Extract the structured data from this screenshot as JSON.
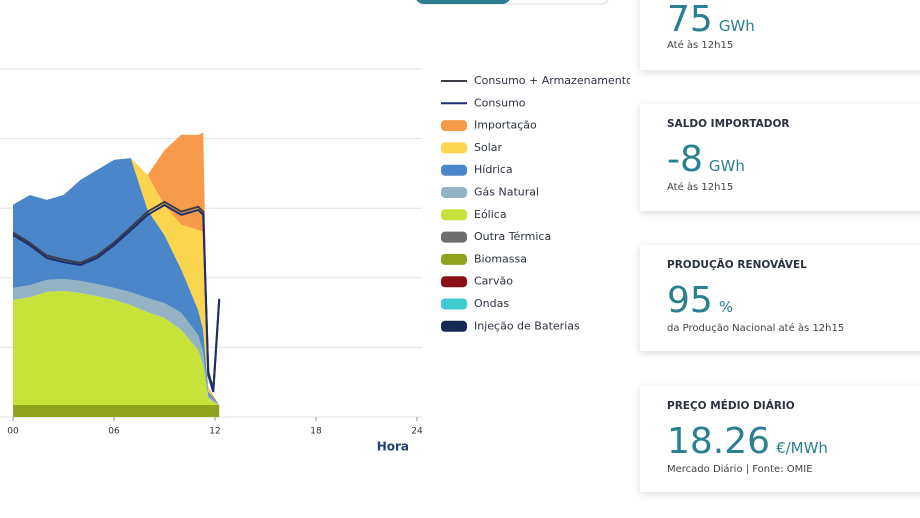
{
  "chart_data": {
    "type": "stacked-area",
    "x": [
      0,
      1,
      2,
      3,
      4,
      5,
      6,
      7,
      8,
      9,
      10,
      11,
      11.3,
      11.6,
      11.9,
      12.25
    ],
    "xlim": [
      0,
      24
    ],
    "xticks": [
      {
        "value": 0,
        "label": "00"
      },
      {
        "value": 6,
        "label": "06"
      },
      12,
      18,
      24
    ],
    "xlabel": "Hora",
    "ylim": [
      0,
      10000
    ],
    "yticks": [
      0,
      2000,
      4000,
      6000,
      8000,
      10000
    ],
    "grid": true,
    "series": [
      {
        "name": "Consumo + Armazenamento",
        "color": "#3a3f47",
        "type": "line",
        "values": [
          5300,
          5000,
          4640,
          4520,
          4430,
          4640,
          5010,
          5450,
          5900,
          6180,
          5900,
          6040,
          5900,
          1300,
          800,
          3400
        ]
      },
      {
        "name": "Consumo",
        "color": "#1b2f6e",
        "type": "line",
        "values": [
          5230,
          4940,
          4570,
          4450,
          4370,
          4570,
          4940,
          5370,
          5810,
          6090,
          5810,
          5950,
          5810,
          1210,
          720,
          3360
        ]
      },
      {
        "name": "Importação",
        "color": "#f79a4a",
        "type": "area",
        "values": [
          0,
          0,
          0,
          0,
          0,
          0,
          0,
          0,
          0,
          1580,
          2590,
          2730,
          2850,
          60,
          60,
          0
        ]
      },
      {
        "name": "Solar",
        "color": "#fcd54f",
        "type": "area",
        "values": [
          0,
          0,
          0,
          0,
          0,
          0,
          0,
          0,
          1010,
          860,
          1290,
          2300,
          2820,
          60,
          0,
          0
        ]
      },
      {
        "name": "Hídrica",
        "color": "#4b86c8",
        "type": "area",
        "values": [
          2390,
          2590,
          2300,
          2410,
          2900,
          3280,
          3680,
          3850,
          2530,
          1950,
          1240,
          720,
          630,
          90,
          60,
          0
        ]
      },
      {
        "name": "Gás Natural",
        "color": "#93b2c3",
        "type": "area",
        "values": [
          345,
          345,
          345,
          345,
          345,
          345,
          345,
          375,
          400,
          430,
          490,
          430,
          375,
          90,
          60,
          0
        ]
      },
      {
        "name": "Eólica",
        "color": "#c8e23c",
        "type": "area",
        "values": [
          3020,
          3100,
          3250,
          3280,
          3220,
          3130,
          3020,
          2870,
          2670,
          2500,
          2160,
          1580,
          1150,
          200,
          90,
          0
        ]
      },
      {
        "name": "Outra Térmica",
        "color": "#6e6e6e",
        "type": "area",
        "values": [
          0,
          0,
          0,
          0,
          0,
          0,
          0,
          0,
          0,
          0,
          0,
          0,
          0,
          0,
          0,
          0
        ]
      },
      {
        "name": "Biomassa",
        "color": "#8fa21e",
        "type": "area",
        "values": [
          345,
          345,
          345,
          345,
          345,
          345,
          345,
          345,
          345,
          345,
          345,
          345,
          345,
          345,
          345,
          345
        ]
      },
      {
        "name": "Carvão",
        "color": "#8b0f16",
        "type": "area",
        "values": [
          0,
          0,
          0,
          0,
          0,
          0,
          0,
          0,
          0,
          0,
          0,
          0,
          0,
          0,
          0,
          0
        ]
      },
      {
        "name": "Ondas",
        "color": "#3fcad0",
        "type": "area",
        "values": [
          0,
          0,
          0,
          0,
          0,
          0,
          0,
          0,
          0,
          0,
          0,
          0,
          0,
          0,
          0,
          0
        ]
      },
      {
        "name": "Injeção de Baterias",
        "color": "#142a55",
        "type": "area",
        "values": [
          0,
          0,
          0,
          0,
          0,
          0,
          0,
          0,
          0,
          0,
          0,
          0,
          0,
          0,
          0,
          0
        ]
      }
    ]
  },
  "cards": [
    {
      "value": 75,
      "unit": "GWh",
      "note": "Até às 12h15"
    },
    {
      "title": "SALDO IMPORTADOR",
      "value": -8,
      "unit": "GWh",
      "note": "Até às 12h15"
    },
    {
      "title": "PRODUÇÃO RENOVÁVEL",
      "value": 95,
      "unit": "%",
      "note": "da Produção Nacional até às 12h15"
    },
    {
      "title": "PREÇO MÉDIO DIÁRIO",
      "value": 18.26,
      "unit": "€/MWh",
      "note": "Mercado Diário | Fonte: OMIE"
    }
  ]
}
